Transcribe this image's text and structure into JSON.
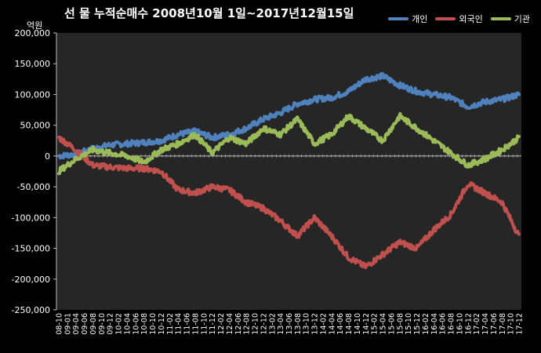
{
  "chart_data": {
    "type": "line",
    "title": "선 물 누적순매수 2008년10월 1일~2017년12월15일",
    "unit_label": "억원",
    "ylim": [
      -250000,
      200000
    ],
    "y_ticks": [
      "200,000",
      "150,000",
      "100,000",
      "50,000",
      "0",
      "-50,000",
      "-100,000",
      "-150,000",
      "-200,000",
      "-250,000"
    ],
    "y_tick_values": [
      200000,
      150000,
      100000,
      50000,
      0,
      -50000,
      -100000,
      -150000,
      -200000,
      -250000
    ],
    "x_tick_labels": [
      "08-10",
      "09-01",
      "09-04",
      "09-06",
      "09-08",
      "09-10",
      "09-12",
      "10-02",
      "10-04",
      "10-06",
      "10-08",
      "10-10",
      "10-12",
      "11-02",
      "11-04",
      "11-06",
      "11-08",
      "11-10",
      "11-12",
      "12-02",
      "12-04",
      "12-06",
      "12-08",
      "12-10",
      "12-12",
      "13-02",
      "13-04",
      "13-06",
      "13-08",
      "13-10",
      "13-12",
      "14-02",
      "14-04",
      "14-06",
      "14-08",
      "14-10",
      "14-12",
      "15-02",
      "15-04",
      "15-06",
      "15-08",
      "15-10",
      "15-12",
      "16-02",
      "16-04",
      "16-06",
      "16-08",
      "16-10",
      "16-12",
      "17-02",
      "17-04",
      "17-06",
      "17-08",
      "17-10",
      "17-12"
    ],
    "x_ticks_shown": [
      0,
      1,
      2,
      3,
      4,
      5,
      6,
      7,
      8,
      9,
      10,
      11,
      12,
      13,
      14,
      15,
      16,
      17,
      18,
      19,
      20,
      21,
      22,
      23,
      24,
      25,
      26,
      27,
      28,
      29,
      30,
      31,
      32,
      33,
      34,
      35,
      36,
      37,
      38,
      39,
      40,
      41,
      42,
      43,
      44,
      45,
      46,
      47,
      48,
      49,
      50,
      51,
      52,
      53,
      54
    ],
    "legend_position": "top-right",
    "grid": false,
    "series": [
      {
        "name": "개인",
        "color": "#4f81bd",
        "x": [
          0,
          2,
          4,
          6,
          8,
          10,
          12,
          14,
          16,
          18,
          20,
          22,
          24,
          26,
          28,
          30,
          32,
          34,
          36,
          38,
          40,
          42,
          44,
          46,
          48,
          50,
          52,
          54
        ],
        "values": [
          0,
          3000,
          12000,
          18000,
          20000,
          22000,
          25000,
          35000,
          40000,
          30000,
          35000,
          45000,
          60000,
          70000,
          85000,
          92000,
          95000,
          105000,
          125000,
          130000,
          115000,
          105000,
          100000,
          95000,
          80000,
          88000,
          92000,
          100000
        ]
      },
      {
        "name": "외국인",
        "color": "#c0504d",
        "x": [
          0,
          2,
          4,
          6,
          8,
          10,
          12,
          14,
          16,
          18,
          20,
          22,
          24,
          26,
          28,
          30,
          32,
          34,
          36,
          38,
          40,
          42,
          44,
          46,
          48,
          50,
          52,
          54
        ],
        "values": [
          30000,
          10000,
          -15000,
          -18000,
          -20000,
          -20000,
          -25000,
          -55000,
          -60000,
          -50000,
          -55000,
          -75000,
          -85000,
          -105000,
          -130000,
          -100000,
          -130000,
          -165000,
          -180000,
          -160000,
          -140000,
          -150000,
          -120000,
          -95000,
          -45000,
          -60000,
          -75000,
          -130000
        ]
      },
      {
        "name": "기관",
        "color": "#9bbb59",
        "x": [
          0,
          2,
          4,
          6,
          8,
          10,
          12,
          14,
          16,
          18,
          20,
          22,
          24,
          26,
          28,
          30,
          32,
          34,
          36,
          38,
          40,
          42,
          44,
          46,
          48,
          50,
          52,
          54
        ],
        "values": [
          -25000,
          -5000,
          10000,
          5000,
          0,
          -10000,
          10000,
          20000,
          35000,
          5000,
          30000,
          20000,
          45000,
          35000,
          60000,
          20000,
          35000,
          65000,
          45000,
          25000,
          65000,
          45000,
          25000,
          5000,
          -15000,
          -5000,
          10000,
          30000
        ]
      }
    ]
  }
}
